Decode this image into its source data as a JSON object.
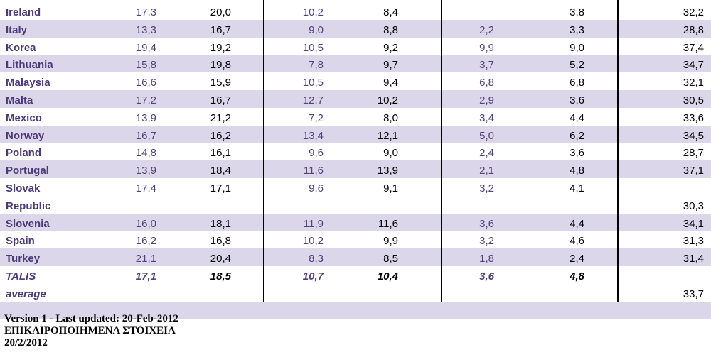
{
  "rows": [
    {
      "country": "Ireland",
      "vals": [
        "17,3",
        "20,0",
        "10,2",
        "8,4",
        "",
        "3,8",
        "32,2"
      ],
      "shade": false,
      "tall": false
    },
    {
      "country": "Italy",
      "vals": [
        "13,3",
        "16,7",
        "9,0",
        "8,8",
        "2,2",
        "3,3",
        "28,8"
      ],
      "shade": true,
      "tall": false
    },
    {
      "country": "Korea",
      "vals": [
        "19,4",
        "19,2",
        "10,5",
        "9,2",
        "9,9",
        "9,0",
        "37,4"
      ],
      "shade": false,
      "tall": false
    },
    {
      "country": "Lithuania",
      "vals": [
        "15,8",
        "19,8",
        "7,8",
        "9,7",
        "3,7",
        "5,2",
        "34,7"
      ],
      "shade": true,
      "tall": false
    },
    {
      "country": "Malaysia",
      "vals": [
        "16,6",
        "15,9",
        "10,5",
        "9,4",
        "6,8",
        "6,8",
        "32,1"
      ],
      "shade": false,
      "tall": false
    },
    {
      "country": "Malta",
      "vals": [
        "17,2",
        "16,7",
        "12,7",
        "10,2",
        "2,9",
        "3,6",
        "30,5"
      ],
      "shade": true,
      "tall": false
    },
    {
      "country": "Mexico",
      "vals": [
        "13,9",
        "21,2",
        "7,2",
        "8,0",
        "3,4",
        "4,4",
        "33,6"
      ],
      "shade": false,
      "tall": false
    },
    {
      "country": "Norway",
      "vals": [
        "16,7",
        "16,2",
        "13,4",
        "12,1",
        "5,0",
        "6,2",
        "34,5"
      ],
      "shade": true,
      "tall": false
    },
    {
      "country": "Poland",
      "vals": [
        "14,8",
        "16,1",
        "9,6",
        "9,0",
        "2,4",
        "3,6",
        "28,7"
      ],
      "shade": false,
      "tall": false
    },
    {
      "country": "Portugal",
      "vals": [
        "13,9",
        "18,4",
        "11,6",
        "13,9",
        "2,1",
        "4,8",
        "37,1"
      ],
      "shade": true,
      "tall": false
    },
    {
      "country": "Slovak",
      "country2": "Republic",
      "vals": [
        "17,4",
        "17,1",
        "9,6",
        "9,1",
        "3,2",
        "4,1",
        "30,3"
      ],
      "shade": false,
      "tall": true
    },
    {
      "country": "Slovenia",
      "vals": [
        "16,0",
        "18,1",
        "11,9",
        "11,6",
        "3,6",
        "4,4",
        "34,1"
      ],
      "shade": true,
      "tall": false
    },
    {
      "country": "Spain",
      "vals": [
        "16,2",
        "16,8",
        "10,2",
        "9,9",
        "3,2",
        "4,6",
        "31,3"
      ],
      "shade": false,
      "tall": false
    },
    {
      "country": "Turkey",
      "vals": [
        "21,1",
        "20,4",
        "8,3",
        "8,5",
        "1,8",
        "2,4",
        "31,4"
      ],
      "shade": true,
      "tall": false
    },
    {
      "country": "TALIS",
      "country2": "average",
      "vals": [
        "17,1",
        "18,5",
        "10,7",
        "10,4",
        "3,6",
        "4,8",
        "33,7"
      ],
      "shade": false,
      "tall": true,
      "average": true
    }
  ],
  "footer": {
    "version": "Version 1 - Last updated: 20-Feb-2012",
    "greek": "ΕΠΙΚΑΙΡΟΠΟΙΗΜΕΝΑ ΣΤΟΙΧΕΙΑ",
    "date": "20/2/2012"
  }
}
